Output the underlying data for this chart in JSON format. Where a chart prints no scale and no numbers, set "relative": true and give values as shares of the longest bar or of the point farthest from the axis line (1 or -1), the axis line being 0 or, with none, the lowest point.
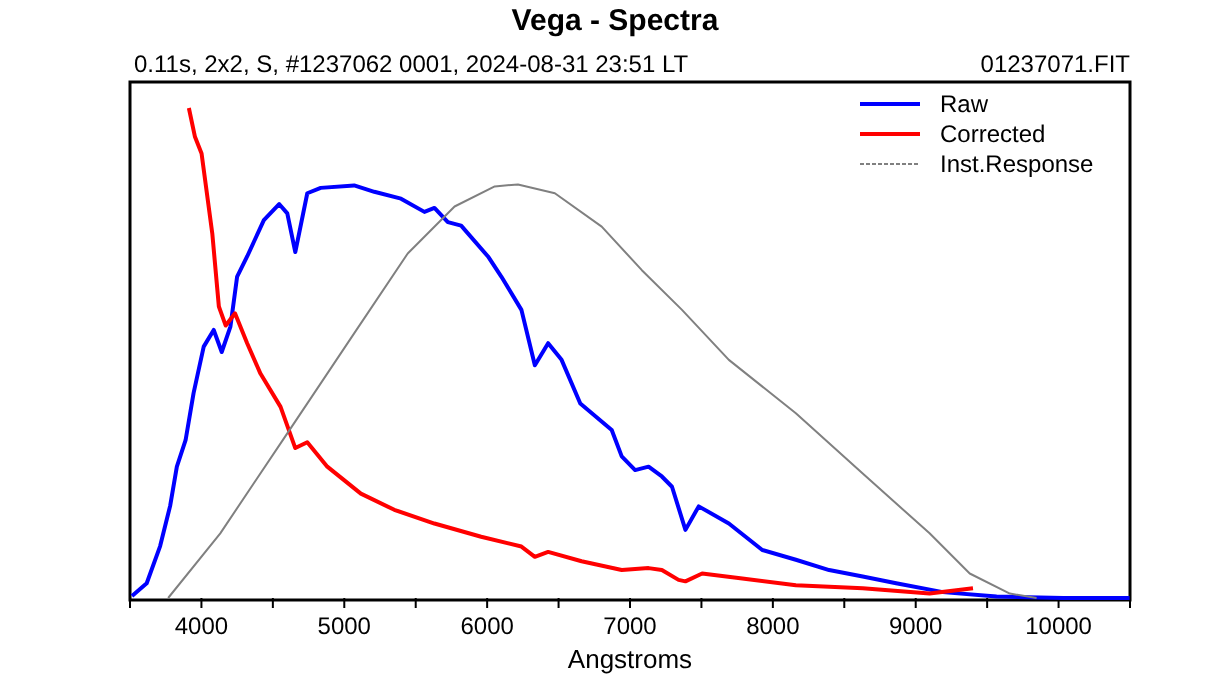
{
  "chart_data": {
    "type": "line",
    "title": "Vega - Spectra",
    "subtitle": "0.11s, 2x2, S, #1237062 0001, 2024-08-31 23:51 LT",
    "annotations": [
      "01237071.FIT"
    ],
    "xlabel": "Angstroms",
    "relative": true,
    "xlim": [
      3500,
      10500
    ],
    "xticks": [
      {
        "value": 3500,
        "label": null
      },
      4000,
      {
        "value": 4500,
        "label": null
      },
      5000,
      {
        "value": 5500,
        "label": null
      },
      6000,
      {
        "value": 6500,
        "label": null
      },
      7000,
      {
        "value": 7500,
        "label": null
      },
      8000,
      {
        "value": 8500,
        "label": null
      },
      9000,
      {
        "value": 9500,
        "label": null
      },
      10000,
      {
        "value": 10500,
        "label": null
      }
    ],
    "legend": "top right",
    "grid": false,
    "series": [
      {
        "name": "Raw",
        "color": "#0000ff",
        "x": [
          3514,
          3617,
          3711,
          3781,
          3828,
          3889,
          3945,
          4016,
          4086,
          4142,
          4203,
          4250,
          4320,
          4437,
          4544,
          4601,
          4657,
          4741,
          4835,
          5069,
          5210,
          5397,
          5561,
          5631,
          5725,
          5818,
          6006,
          6099,
          6240,
          6334,
          6427,
          6521,
          6652,
          6872,
          6942,
          7036,
          7130,
          7223,
          7294,
          7388,
          7481,
          7692,
          7926,
          8161,
          8394,
          8629,
          8863,
          9190,
          9566,
          10034,
          10497
        ],
        "values": [
          0.004,
          0.03,
          0.106,
          0.188,
          0.268,
          0.322,
          0.418,
          0.513,
          0.547,
          0.502,
          0.554,
          0.656,
          0.697,
          0.771,
          0.804,
          0.785,
          0.706,
          0.826,
          0.837,
          0.842,
          0.829,
          0.815,
          0.788,
          0.796,
          0.767,
          0.76,
          0.697,
          0.656,
          0.588,
          0.475,
          0.52,
          0.486,
          0.397,
          0.343,
          0.289,
          0.261,
          0.268,
          0.248,
          0.227,
          0.139,
          0.187,
          0.152,
          0.098,
          0.078,
          0.057,
          0.044,
          0.03,
          0.012,
          0.003,
          0,
          0
        ]
      },
      {
        "name": "Corrected",
        "color": "#ff0000",
        "x": [
          3912,
          3954,
          4001,
          4076,
          4122,
          4170,
          4235,
          4320,
          4413,
          4554,
          4657,
          4741,
          4881,
          5116,
          5350,
          5631,
          5958,
          6240,
          6334,
          6427,
          6661,
          6942,
          7130,
          7223,
          7340,
          7388,
          7505,
          7786,
          8161,
          8629,
          9097,
          9401
        ],
        "values": [
          1,
          0.942,
          0.907,
          0.744,
          0.595,
          0.556,
          0.581,
          0.52,
          0.458,
          0.39,
          0.306,
          0.318,
          0.268,
          0.213,
          0.18,
          0.152,
          0.125,
          0.105,
          0.084,
          0.094,
          0.075,
          0.057,
          0.061,
          0.057,
          0.037,
          0.034,
          0.05,
          0.04,
          0.026,
          0.02,
          0.009,
          0.02
        ]
      },
      {
        "name": "Inst.Response",
        "color": "#808080",
        "x": [
          3767,
          4132,
          4601,
          5069,
          5444,
          5772,
          6053,
          6216,
          6474,
          6802,
          7083,
          7364,
          7692,
          8161,
          8629,
          9097,
          9378,
          9659,
          9846
        ],
        "values": [
          0,
          0.132,
          0.336,
          0.54,
          0.703,
          0.799,
          0.84,
          0.844,
          0.826,
          0.758,
          0.669,
          0.588,
          0.486,
          0.377,
          0.254,
          0.132,
          0.05,
          0.009,
          0
        ]
      }
    ]
  }
}
